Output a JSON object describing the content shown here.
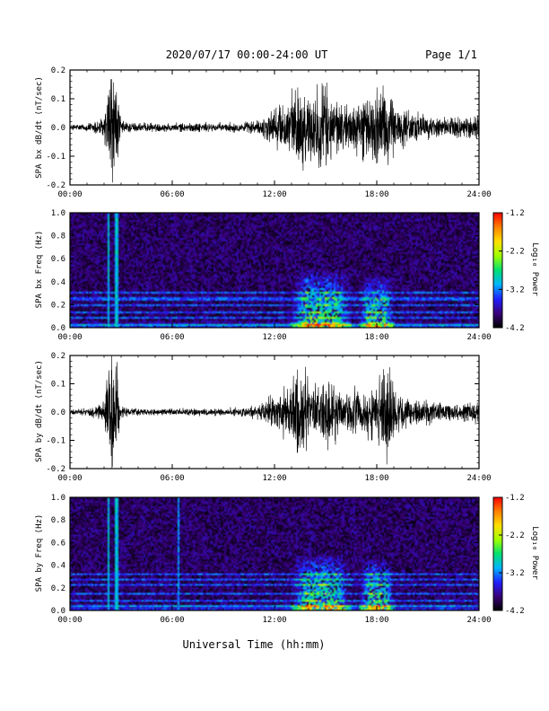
{
  "header": {
    "title": "2020/07/17  00:00-24:00 UT",
    "page": "Page 1/1"
  },
  "footer": {
    "xlabel": "Universal Time (hh:mm)"
  },
  "colorbar": {
    "label": "Log₁₀ Power",
    "ticks": [
      "-1.2",
      "-2.2",
      "-3.2",
      "-4.2"
    ],
    "range": [
      -4.2,
      -1.2
    ],
    "colors": [
      "#000000",
      "#3a007a",
      "#2020ff",
      "#00b4ff",
      "#00e070",
      "#a0ff00",
      "#ffe000",
      "#ff8000",
      "#ff0000"
    ]
  },
  "chart_data": [
    {
      "type": "line",
      "title": "",
      "ylabel": "SPA bx dB/dt (nT/sec)",
      "xlabel": "",
      "xlim": [
        "00:00",
        "24:00"
      ],
      "ylim": [
        -0.2,
        0.2
      ],
      "xticks": [
        "00:00",
        "06:00",
        "12:00",
        "18:00",
        "24:00"
      ],
      "yticks": [
        "0.2",
        "0.1",
        "0.0",
        "-0.1",
        "-0.2"
      ],
      "series": [
        {
          "color": "#000000",
          "x": [
            "00:00",
            "01:00",
            "02:00",
            "02:20",
            "02:45",
            "03:00",
            "04:00",
            "05:00",
            "06:00",
            "07:00",
            "08:00",
            "09:00",
            "10:00",
            "11:00",
            "12:00",
            "13:00",
            "13:30",
            "14:00",
            "15:00",
            "15:30",
            "16:00",
            "17:00",
            "18:00",
            "18:40",
            "19:00",
            "20:00",
            "21:00",
            "22:00",
            "23:00",
            "24:00"
          ],
          "amplitude": [
            0.015,
            0.018,
            0.05,
            0.25,
            0.2,
            0.03,
            0.02,
            0.018,
            0.018,
            0.02,
            0.02,
            0.02,
            0.022,
            0.03,
            0.09,
            0.15,
            0.18,
            0.16,
            0.2,
            0.14,
            0.1,
            0.12,
            0.17,
            0.2,
            0.12,
            0.07,
            0.05,
            0.04,
            0.05,
            0.06
          ]
        }
      ]
    },
    {
      "type": "heatmap",
      "title": "",
      "ylabel": "SPA bx Freq (Hz)",
      "xlabel": "",
      "xlim": [
        "00:00",
        "24:00"
      ],
      "ylim": [
        0.0,
        1.0
      ],
      "xticks": [
        "00:00",
        "06:00",
        "12:00",
        "18:00",
        "24:00"
      ],
      "yticks": [
        "1.0",
        "0.8",
        "0.6",
        "0.4",
        "0.2",
        "0.0"
      ],
      "zlim": [
        -4.2,
        -1.2
      ],
      "zlabel": "Log₁₀ Power",
      "background_log_power": -3.9,
      "spectral_lines_hz": [
        0.03,
        0.08,
        0.13,
        0.19,
        0.25,
        0.3
      ],
      "events": [
        {
          "time": "02:15",
          "max_freq_hz": 1.0,
          "log_power": -3.0
        },
        {
          "time": "02:45",
          "max_freq_hz": 1.0,
          "log_power": -3.0
        },
        {
          "time_start": "13:00",
          "time_end": "16:30",
          "max_freq_hz": 0.5,
          "log_power": -2.6
        },
        {
          "time_start": "17:00",
          "time_end": "19:00",
          "max_freq_hz": 0.45,
          "log_power": -2.7
        }
      ]
    },
    {
      "type": "line",
      "title": "",
      "ylabel": "SPA by dB/dt (nT/sec)",
      "xlabel": "",
      "xlim": [
        "00:00",
        "24:00"
      ],
      "ylim": [
        -0.2,
        0.2
      ],
      "xticks": [
        "00:00",
        "06:00",
        "12:00",
        "18:00",
        "24:00"
      ],
      "yticks": [
        "0.2",
        "0.1",
        "0.0",
        "-0.1",
        "-0.2"
      ],
      "series": [
        {
          "color": "#000000",
          "x": [
            "00:00",
            "01:00",
            "02:00",
            "02:20",
            "02:45",
            "03:00",
            "04:00",
            "05:00",
            "06:00",
            "07:00",
            "08:00",
            "09:00",
            "10:00",
            "11:00",
            "12:00",
            "13:00",
            "13:30",
            "14:00",
            "15:00",
            "15:30",
            "16:00",
            "17:00",
            "18:00",
            "18:40",
            "19:00",
            "20:00",
            "21:00",
            "22:00",
            "23:00",
            "24:00"
          ],
          "amplitude": [
            0.012,
            0.015,
            0.05,
            0.25,
            0.22,
            0.025,
            0.015,
            0.015,
            0.015,
            0.015,
            0.015,
            0.016,
            0.02,
            0.03,
            0.08,
            0.12,
            0.25,
            0.12,
            0.16,
            0.14,
            0.09,
            0.11,
            0.12,
            0.25,
            0.1,
            0.06,
            0.05,
            0.04,
            0.04,
            0.05
          ]
        }
      ]
    },
    {
      "type": "heatmap",
      "title": "",
      "ylabel": "SPA by Freq (Hz)",
      "xlabel": "",
      "xlim": [
        "00:00",
        "24:00"
      ],
      "ylim": [
        0.0,
        1.0
      ],
      "xticks": [
        "00:00",
        "06:00",
        "12:00",
        "18:00",
        "24:00"
      ],
      "yticks": [
        "1.0",
        "0.8",
        "0.6",
        "0.4",
        "0.2",
        "0.0"
      ],
      "zlim": [
        -4.2,
        -1.2
      ],
      "zlabel": "Log₁₀ Power",
      "background_log_power": -3.9,
      "spectral_lines_hz": [
        0.04,
        0.09,
        0.15,
        0.22,
        0.28,
        0.32
      ],
      "events": [
        {
          "time": "02:15",
          "max_freq_hz": 1.0,
          "log_power": -3.0
        },
        {
          "time": "02:45",
          "max_freq_hz": 1.0,
          "log_power": -3.0
        },
        {
          "time": "06:20",
          "max_freq_hz": 1.0,
          "log_power": -3.2
        },
        {
          "time_start": "13:00",
          "time_end": "16:30",
          "max_freq_hz": 0.5,
          "log_power": -2.6
        },
        {
          "time_start": "17:00",
          "time_end": "19:00",
          "max_freq_hz": 0.45,
          "log_power": -2.6
        }
      ]
    }
  ]
}
